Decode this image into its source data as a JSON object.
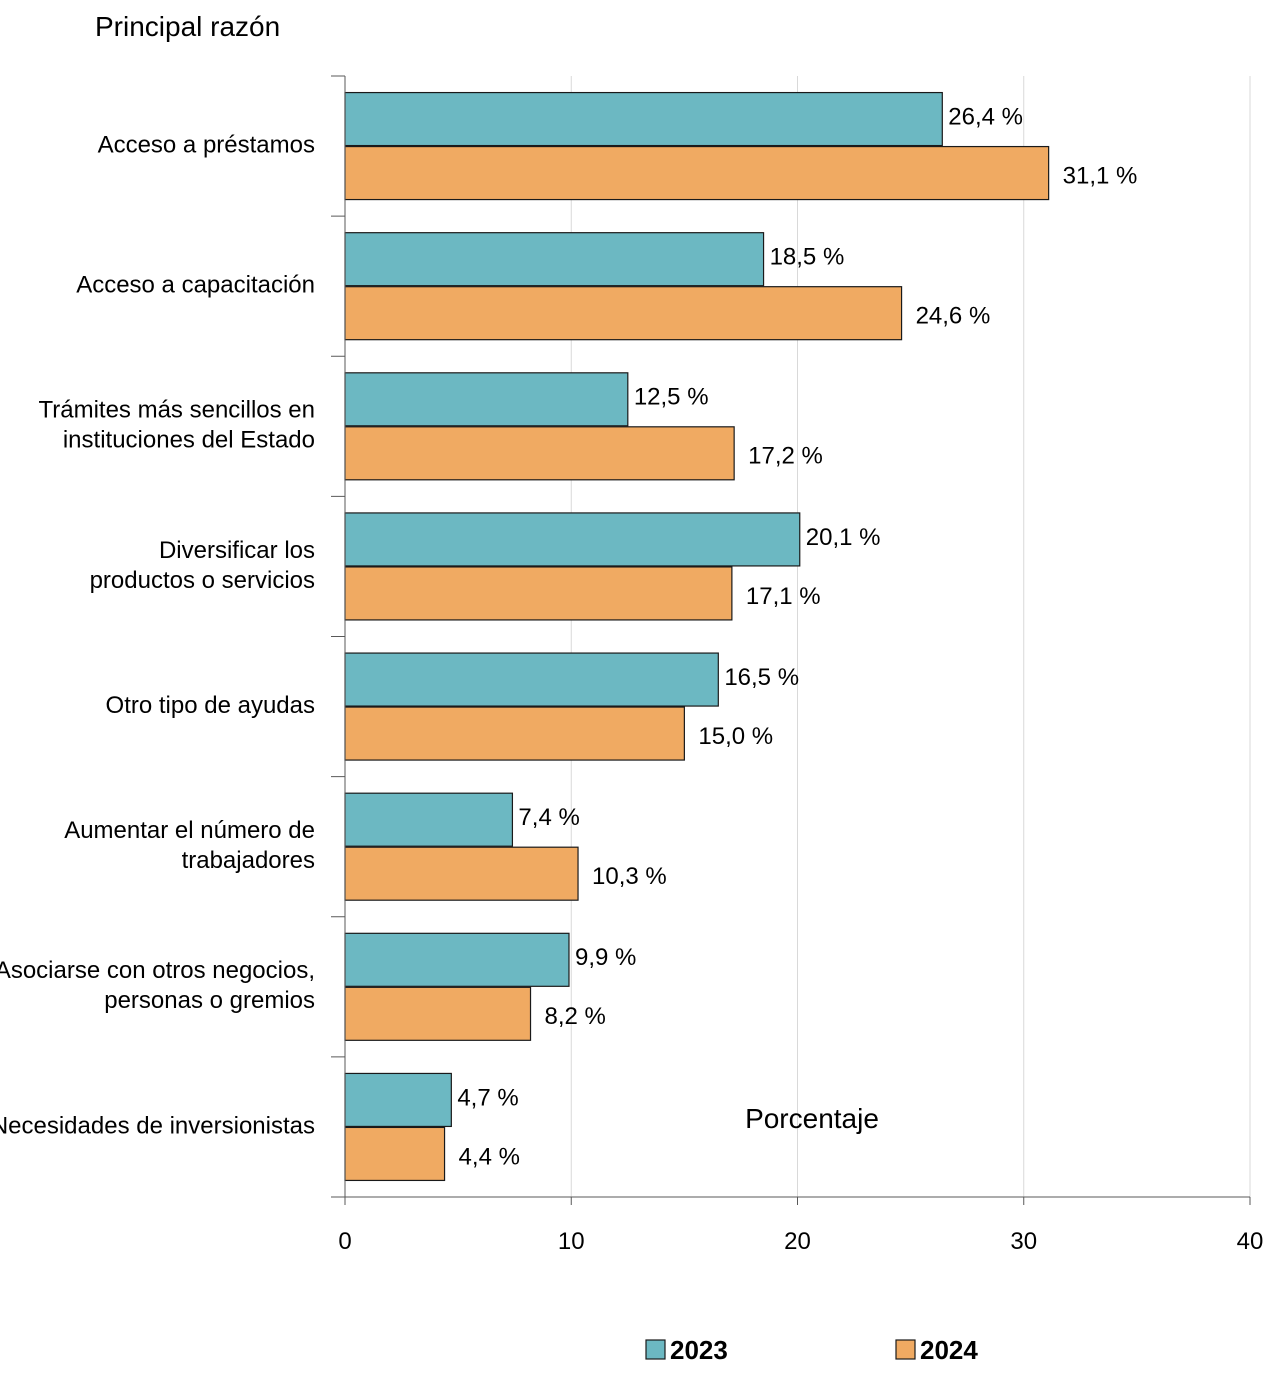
{
  "chart_data": {
    "type": "bar",
    "orientation": "horizontal",
    "y_title": "Principal razón",
    "xlabel": "Porcentaje",
    "xlim": [
      0,
      40
    ],
    "x_ticks": [
      "0",
      "10",
      "20",
      "30",
      "40"
    ],
    "grid": "vertical",
    "legend_position": "bottom",
    "categories": [
      [
        "Acceso a préstamos"
      ],
      [
        "Acceso a capacitación"
      ],
      [
        "Trámites más sencillos en",
        "instituciones del Estado"
      ],
      [
        "Diversificar los",
        "productos o servicios"
      ],
      [
        "Otro tipo de ayudas"
      ],
      [
        "Aumentar el número de",
        "trabajadores"
      ],
      [
        "Asociarse con otros negocios,",
        "personas o gremios"
      ],
      [
        "Necesidades de inversionistas"
      ]
    ],
    "series": [
      {
        "name": "2023",
        "color": "#6cb8c2",
        "values": [
          26.4,
          18.5,
          12.5,
          20.1,
          16.5,
          7.4,
          9.9,
          4.7
        ],
        "labels": [
          "26,4 %",
          "18,5 %",
          "12,5 %",
          "20,1 %",
          "16,5 %",
          "7,4 %",
          "9,9 %",
          "4,7 %"
        ]
      },
      {
        "name": "2024",
        "color": "#f0aa62",
        "values": [
          31.1,
          24.6,
          17.2,
          17.1,
          15.0,
          10.3,
          8.2,
          4.4
        ],
        "labels": [
          "31,1 %",
          "24,6 %",
          "17,2 %",
          "17,1 %",
          "15,0 %",
          "10,3 %",
          "8,2 %",
          "4,4 %"
        ]
      }
    ]
  }
}
